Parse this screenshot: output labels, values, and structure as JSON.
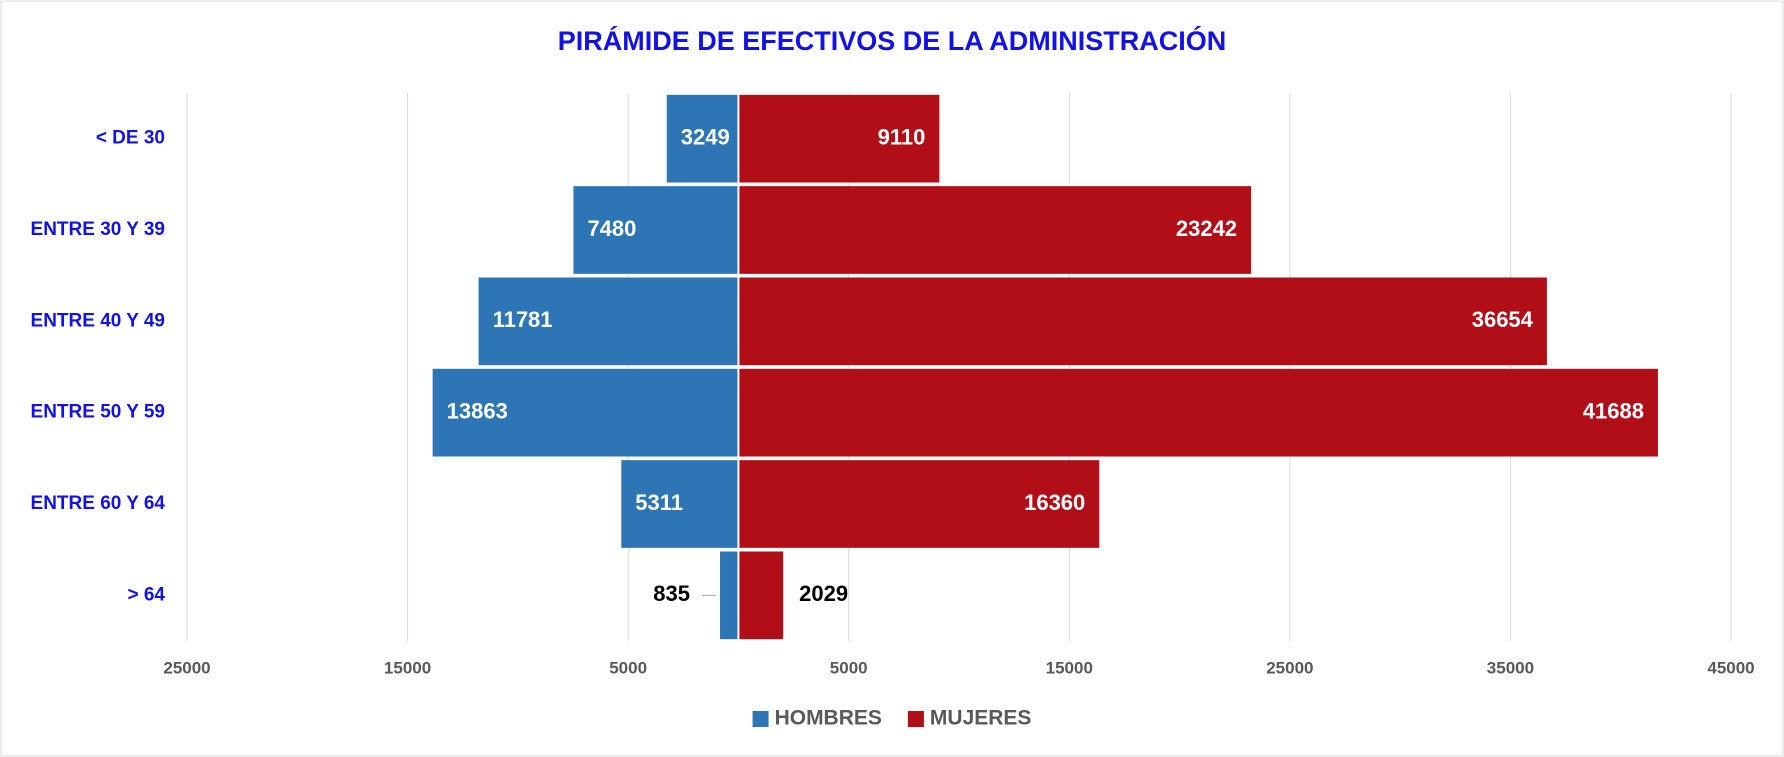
{
  "chart_data": {
    "type": "pyramid",
    "title": "PIRÁMIDE DE EFECTIVOS DE LA ADMINISTRACIÓN",
    "categories": [
      "< DE 30",
      "ENTRE 30 Y 39",
      "ENTRE 40 Y 49",
      "ENTRE 50 Y 59",
      "ENTRE 60 Y 64",
      "> 64"
    ],
    "series": [
      {
        "name": "HOMBRES",
        "color": "#2e75b6",
        "values": [
          -3249,
          -7480,
          -11781,
          -13863,
          -5311,
          -835
        ],
        "value_labels": [
          "3249",
          "7480",
          "11781",
          "13863",
          "5311",
          "835"
        ]
      },
      {
        "name": "MUJERES",
        "color": "#b20e17",
        "values": [
          9110,
          23242,
          36654,
          41688,
          16360,
          2029
        ]
      }
    ],
    "xlim": [
      -25000,
      45000
    ],
    "xticks": [
      {
        "value": -25000,
        "label": "25000"
      },
      {
        "value": -15000,
        "label": "15000"
      },
      {
        "value": -5000,
        "label": "5000"
      },
      5000,
      15000,
      25000,
      35000,
      45000
    ],
    "grid": true,
    "legend": "bottom"
  }
}
